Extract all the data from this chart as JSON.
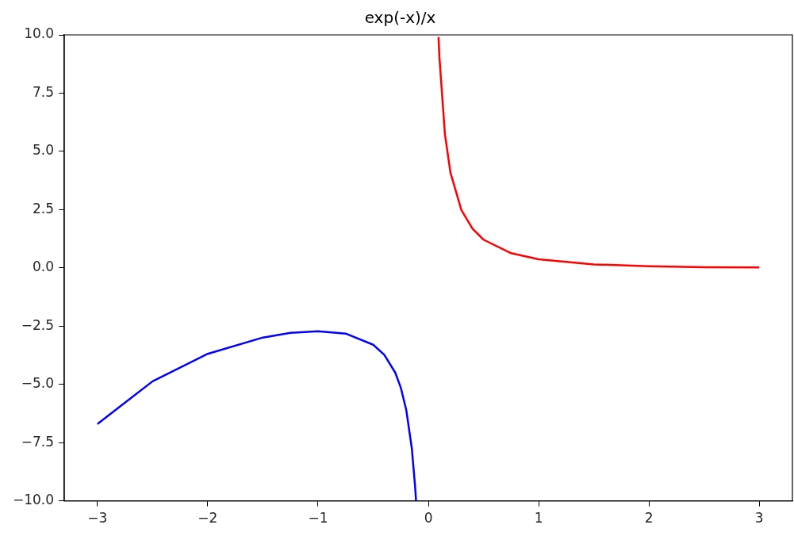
{
  "chart_data": {
    "type": "line",
    "title": "exp(-x)/x",
    "marker": "none",
    "legend": false,
    "grid": false,
    "xlim": [
      -3.3,
      3.3
    ],
    "xticks": [
      {
        "value": -3,
        "label": "−3"
      },
      {
        "value": -2,
        "label": "−2"
      },
      {
        "value": -1,
        "label": "−1"
      },
      0,
      1,
      2,
      3
    ],
    "ylim": [
      -10,
      10
    ],
    "yticks": [
      {
        "value": -10,
        "label": "−10.0"
      },
      {
        "value": -7.5,
        "label": "−7.5"
      },
      {
        "value": -5,
        "label": "−5.0"
      },
      {
        "value": -2.5,
        "label": "−2.5"
      },
      {
        "value": 0,
        "label": "0.0"
      },
      {
        "value": 2.5,
        "label": "2.5"
      },
      {
        "value": 5,
        "label": "5.0"
      },
      {
        "value": 7.5,
        "label": "7.5"
      },
      {
        "value": 10,
        "label": "10.0"
      }
    ],
    "series": [
      {
        "color": "#0000ff",
        "x": [
          -3,
          -2.5,
          -2,
          -1.5,
          -1.25,
          -1,
          -0.75,
          -0.5,
          -0.4,
          -0.3,
          -0.25,
          -0.2,
          -0.15,
          -0.12,
          -0.112
        ],
        "values": [
          -6.7,
          -4.87,
          -3.69,
          -2.99,
          -2.79,
          -2.72,
          -2.82,
          -3.3,
          -3.73,
          -4.5,
          -5.14,
          -6.11,
          -7.75,
          -9.4,
          -9.99
        ]
      },
      {
        "color": "#ff0000",
        "x": [
          0.092,
          0.1,
          0.15,
          0.2,
          0.3,
          0.4,
          0.5,
          0.75,
          1,
          1.5,
          2,
          2.5,
          3
        ],
        "values": [
          9.91,
          9.05,
          5.74,
          4.09,
          2.47,
          1.68,
          1.21,
          0.63,
          0.37,
          0.15,
          0.07,
          0.03,
          0.02
        ]
      }
    ]
  }
}
